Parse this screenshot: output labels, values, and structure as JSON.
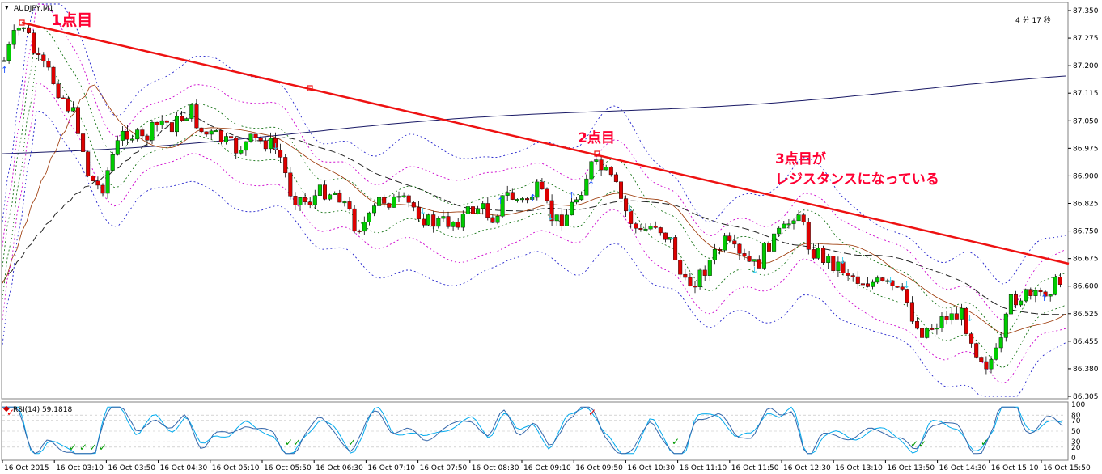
{
  "symbol_label": "AUDJPY,M1",
  "countdown": "4 分 17 秒",
  "price_axis": [
    "87.350",
    "87.275",
    "87.200",
    "87.115",
    "87.050",
    "86.975",
    "86.900",
    "86.825",
    "86.750",
    "86.675",
    "86.600",
    "86.525",
    "86.455",
    "86.380",
    "86.305"
  ],
  "time_axis": [
    "16 Oct 2015",
    "16 Oct 03:10",
    "16 Oct 03:50",
    "16 Oct 04:30",
    "16 Oct 05:10",
    "16 Oct 05:50",
    "16 Oct 06:30",
    "16 Oct 07:10",
    "16 Oct 07:50",
    "16 Oct 08:30",
    "16 Oct 09:10",
    "16 Oct 09:50",
    "16 Oct 10:30",
    "16 Oct 11:10",
    "16 Oct 11:50",
    "16 Oct 12:30",
    "16 Oct 13:10",
    "16 Oct 13:50",
    "16 Oct 14:30",
    "16 Oct 15:10",
    "16 Oct 15:50"
  ],
  "annotations": {
    "point1": "1点目",
    "point2": "2点目",
    "point3_line1": "3点目が",
    "point3_line2": "レジスタンスになっている"
  },
  "oscillator": {
    "label": "RSI(14) 59.1818",
    "levels": [
      "100",
      "80",
      "70",
      "50",
      "30",
      "20",
      "0"
    ]
  },
  "colors": {
    "bull": "#00cc00",
    "bear": "#dd0000",
    "trendline": "#ee1111",
    "annotation": "#ff0033"
  }
}
